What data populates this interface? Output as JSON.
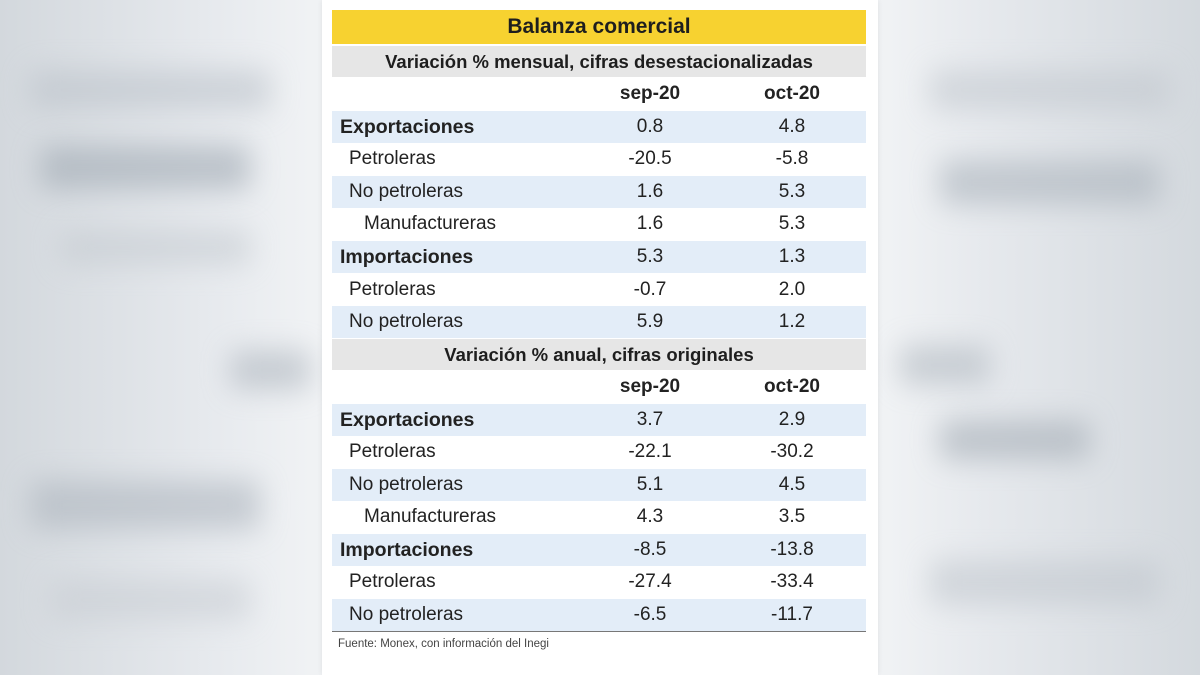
{
  "title": "Balanza comercial",
  "sections": [
    {
      "heading": "Variación % mensual, cifras desestacionalizadas",
      "columns": [
        "sep-20",
        "oct-20"
      ],
      "rows": [
        {
          "label": "Exportaciones",
          "values": [
            "0.8",
            "4.8"
          ]
        },
        {
          "label": "Petroleras",
          "values": [
            "-20.5",
            "-5.8"
          ]
        },
        {
          "label": "No petroleras",
          "values": [
            "1.6",
            "5.3"
          ]
        },
        {
          "label": "Manufactureras",
          "values": [
            "1.6",
            "5.3"
          ]
        },
        {
          "label": "Importaciones",
          "values": [
            "5.3",
            "1.3"
          ]
        },
        {
          "label": "Petroleras",
          "values": [
            "-0.7",
            "2.0"
          ]
        },
        {
          "label": "No petroleras",
          "values": [
            "5.9",
            "1.2"
          ]
        }
      ]
    },
    {
      "heading": "Variación % anual, cifras originales",
      "columns": [
        "sep-20",
        "oct-20"
      ],
      "rows": [
        {
          "label": "Exportaciones",
          "values": [
            "3.7",
            "2.9"
          ]
        },
        {
          "label": "Petroleras",
          "values": [
            "-22.1",
            "-30.2"
          ]
        },
        {
          "label": "No petroleras",
          "values": [
            "5.1",
            "4.5"
          ]
        },
        {
          "label": "Manufactureras",
          "values": [
            "4.3",
            "3.5"
          ]
        },
        {
          "label": "Importaciones",
          "values": [
            "-8.5",
            "-13.8"
          ]
        },
        {
          "label": "Petroleras",
          "values": [
            "-27.4",
            "-33.4"
          ]
        },
        {
          "label": "No petroleras",
          "values": [
            "-6.5",
            "-11.7"
          ]
        }
      ]
    }
  ],
  "source": "Fuente: Monex, con información del Inegi",
  "colors": {
    "title_bg": "#f7d230",
    "section_bg": "#e6e6e6",
    "row_shade": "#e3edf8"
  }
}
